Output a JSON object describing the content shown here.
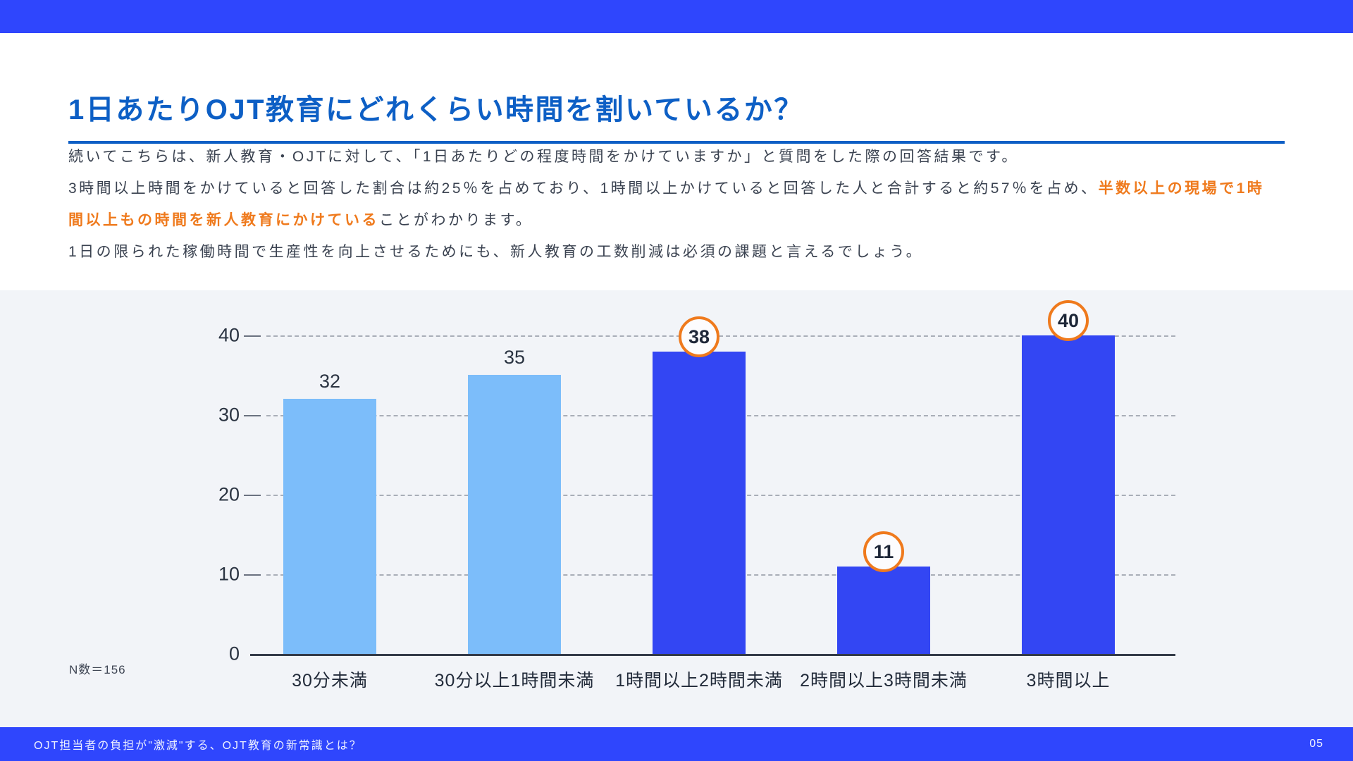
{
  "slide": {
    "title": "1日あたりOJT教育にどれくらい時間を割いているか？",
    "paragraphs": {
      "p1": "続いてこちらは、新人教育・OJTに対して、「1日あたりどの程度時間をかけていますか」と質問をした際の回答結果です。",
      "p2_normal": "3時間以上時間をかけていると回答した割合は約25％を占めており、1時間以上かけていると回答した人と合計すると約57％を占め、",
      "p2_highlight": "半数以上の現場で1時間以上もの時間を新人教育にかけている",
      "p2_tail": "ことがわかります。",
      "p3": "1日の限られた稼働時間で生産性を向上させるためにも、新人教育の工数削減は必須の課題と言えるでしょう。"
    },
    "footer": {
      "left": "OJT担当者の負担が\"激減\"する、OJT教育の新常識とは？",
      "page": "05"
    }
  },
  "colors": {
    "header_footer_blue": "#2F46FD",
    "title_blue": "#0D5FC5",
    "bar_light_blue": "#7CBDFA",
    "bar_dark_blue": "#3346F3",
    "accent_orange": "#EF7A1D",
    "body_text": "#3A4250",
    "axis_text": "#2B3442",
    "chart_background": "#F2F4F8",
    "gridline_gray": "#A9AEB8"
  },
  "chart_data": {
    "type": "bar",
    "title": "",
    "categories": [
      "30分未満",
      "30分以上1時間未満",
      "1時間以上2時間未満",
      "2時間以上3時間未満",
      "3時間以上"
    ],
    "values": [
      32,
      35,
      38,
      11,
      40
    ],
    "bar_colors": [
      "#7CBDFA",
      "#7CBDFA",
      "#3346F3",
      "#3346F3",
      "#3346F3"
    ],
    "badged": [
      false,
      false,
      true,
      true,
      true
    ],
    "yticks": [
      0,
      10,
      20,
      30,
      40
    ],
    "ylim": [
      0,
      44
    ],
    "grid": "horizontal-dashed",
    "legend": null,
    "n_label": "N数＝156"
  }
}
